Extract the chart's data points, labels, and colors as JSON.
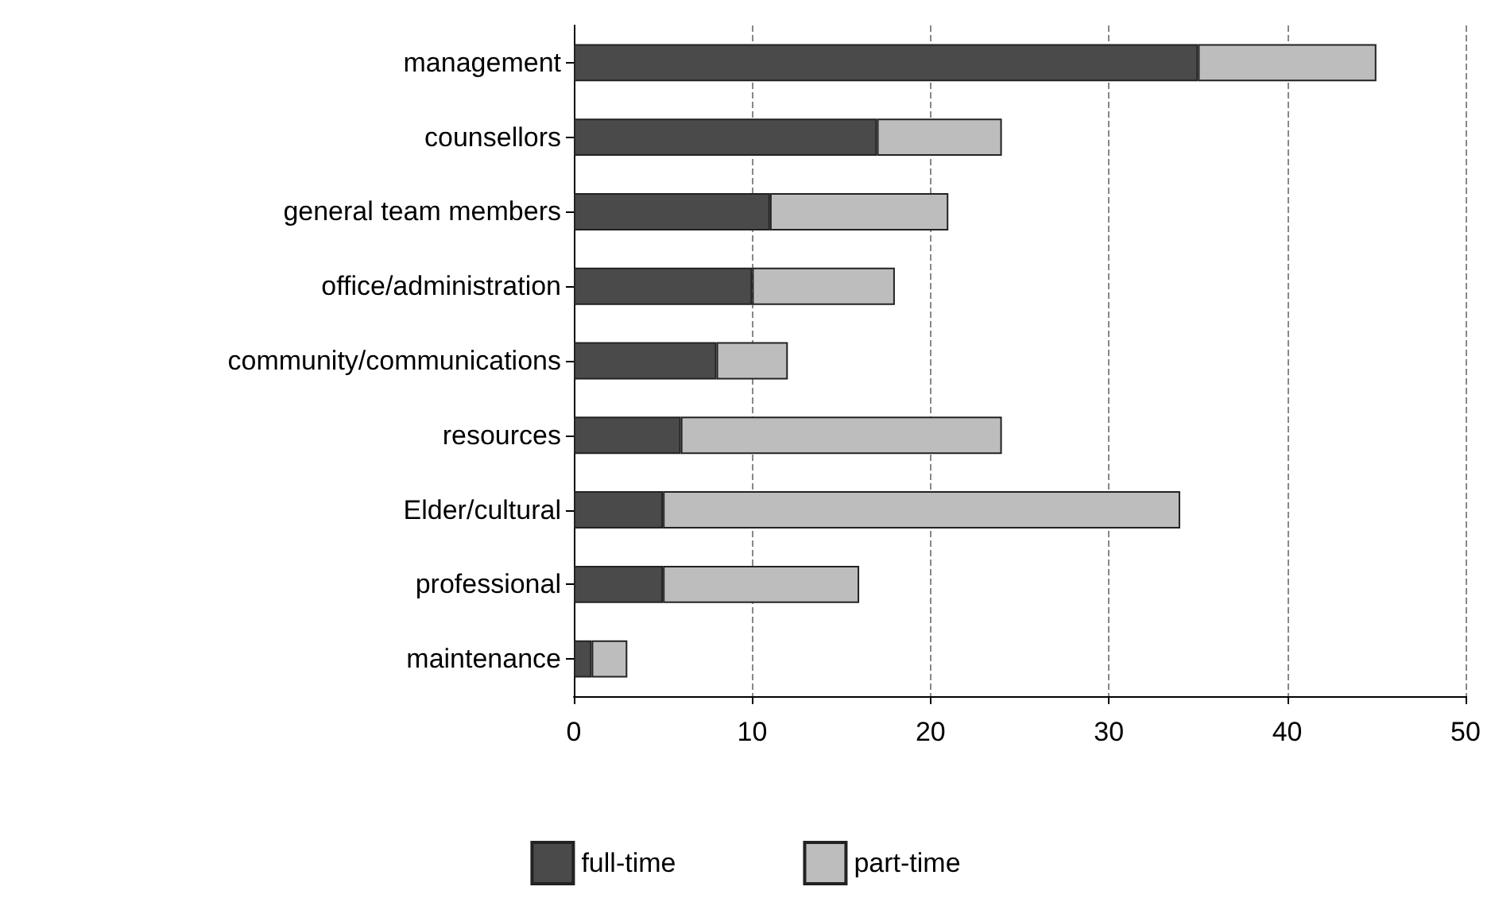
{
  "chart_data": {
    "type": "bar",
    "orientation": "horizontal",
    "stacked": true,
    "categories": [
      "management",
      "counsellors",
      "general team members",
      "office/administration",
      "community/communications",
      "resources",
      "Elder/cultural",
      "professional",
      "maintenance"
    ],
    "series": [
      {
        "name": "full-time",
        "color": "#4a4a4a",
        "values": [
          35,
          17,
          11,
          10,
          8,
          6,
          5,
          5,
          1
        ]
      },
      {
        "name": "part-time",
        "color": "#bdbdbd",
        "values": [
          10,
          7,
          10,
          8,
          4,
          18,
          29,
          11,
          2
        ]
      }
    ],
    "xlim": [
      0,
      50
    ],
    "xticks": [
      0,
      10,
      20,
      30,
      40,
      50
    ],
    "grid": "x",
    "legend": "bottom"
  }
}
